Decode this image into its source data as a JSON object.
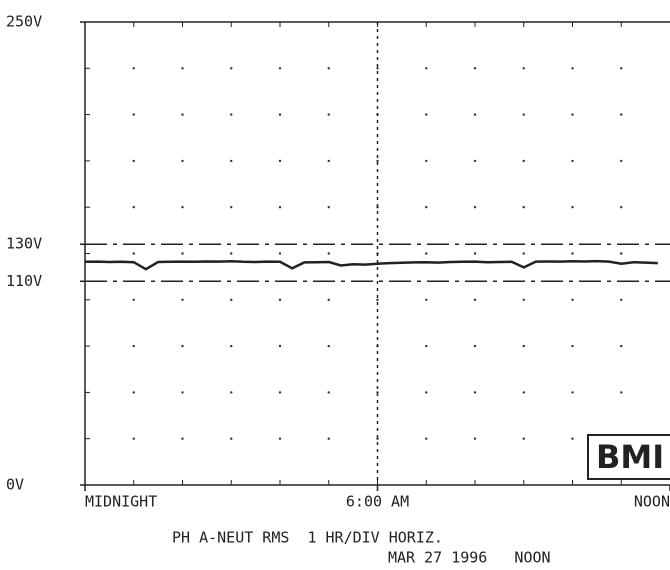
{
  "chart_data": {
    "type": "line",
    "x": [
      0,
      0.25,
      0.5,
      0.75,
      1,
      1.25,
      1.5,
      1.75,
      2,
      2.25,
      2.5,
      2.75,
      3,
      3.25,
      3.5,
      3.75,
      4,
      4.25,
      4.5,
      4.75,
      5,
      5.25,
      5.5,
      5.75,
      6,
      6.25,
      6.5,
      6.75,
      7,
      7.25,
      7.5,
      7.75,
      8,
      8.25,
      8.5,
      8.75,
      9,
      9.25,
      9.5,
      9.75,
      10,
      10.25,
      10.5,
      10.75,
      11,
      11.25,
      11.5,
      11.75
    ],
    "series": [
      {
        "color": "#222222",
        "values": [
          120.5,
          120.6,
          120.4,
          120.5,
          120.3,
          116.5,
          120.4,
          120.5,
          120.6,
          120.5,
          120.7,
          120.6,
          120.8,
          120.5,
          120.4,
          120.6,
          120.5,
          117,
          120.2,
          120.3,
          120.4,
          118.5,
          119.2,
          119,
          119.5,
          119.8,
          120,
          120.2,
          120.3,
          120.1,
          120.4,
          120.5,
          120.6,
          120.3,
          120.4,
          120.5,
          117.5,
          120.6,
          120.7,
          120.6,
          120.8,
          120.7,
          120.9,
          120.6,
          119.5,
          120.3,
          120.1,
          119.8
        ]
      }
    ],
    "xlim": [
      0,
      12
    ],
    "xticks": [
      {
        "value": 0,
        "label": "MIDNIGHT"
      },
      {
        "value": 6,
        "label": "6:00 AM"
      },
      {
        "value": 12,
        "label": "NOON"
      }
    ],
    "ylim": [
      0,
      250
    ],
    "yticks": [
      {
        "value": 0,
        "label": "0V"
      },
      {
        "value": 110,
        "label": "110V"
      },
      {
        "value": 130,
        "label": "130V"
      },
      {
        "value": 250,
        "label": "250V"
      }
    ],
    "thresholds": [
      130,
      110
    ],
    "cursor_x": 6,
    "grid": "dots",
    "caption": [
      "PH A-NEUT RMS  1 HR/DIV HORIZ.",
      "MAR 27 1996   NOON"
    ],
    "logo": "BMI"
  }
}
